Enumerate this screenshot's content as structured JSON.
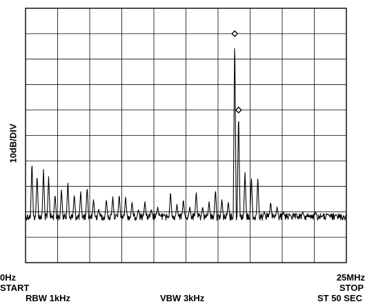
{
  "chart_data": {
    "type": "line",
    "title": "",
    "ylabel": "10dB/DIV",
    "x_start_label": "0Hz",
    "x_start_caption": "START",
    "x_stop_label": "25MHz",
    "x_stop_caption": "STOP",
    "footer": {
      "rbw": "RBW 1kHz",
      "vbw": "VBW 3kHz",
      "sweep": "ST 50 SEC"
    },
    "x_unit": "MHz",
    "xlim": [
      0,
      25
    ],
    "y_unit": "dB",
    "ylim": [
      -100,
      0
    ],
    "grid": true,
    "grid_divisions": {
      "x": 10,
      "y": 10
    },
    "noise_floor_db": -82,
    "series": [
      {
        "x": [
          0.5,
          0.9,
          1.4,
          1.8,
          2.3,
          2.8,
          3.3,
          3.8,
          4.3,
          4.8,
          5.3,
          5.7,
          6.3,
          6.8,
          7.3,
          7.8,
          8.3,
          8.8,
          9.3,
          9.8,
          10.3,
          10.8,
          11.3,
          11.8,
          12.3,
          12.8,
          13.3,
          13.8,
          14.3,
          14.8,
          15.3,
          15.8,
          16.3,
          16.6,
          17.1,
          17.6,
          18.1,
          18.6,
          19.1,
          19.6,
          20.1,
          20.6,
          21.1,
          21.6,
          22.1,
          22.6,
          23.1,
          23.6,
          24.2
        ],
        "y": [
          -60,
          -65,
          -63,
          -66,
          -73,
          -71,
          -68,
          -73,
          -72,
          -70,
          -75,
          -79,
          -75,
          -74,
          -73,
          -74,
          -76,
          -79,
          -76,
          -79,
          -78,
          -81,
          -72,
          -77,
          -75,
          -78,
          -72,
          -78,
          -76,
          -71,
          -75,
          -76,
          -10,
          -40,
          -64,
          -66,
          -66,
          -80,
          -76,
          -78,
          -80,
          -81,
          -86,
          -80,
          -82,
          -80,
          -82,
          -81,
          -81
        ]
      }
    ],
    "markers": [
      {
        "x": 16.3,
        "y": -10
      },
      {
        "x": 16.6,
        "y": -40
      }
    ]
  }
}
